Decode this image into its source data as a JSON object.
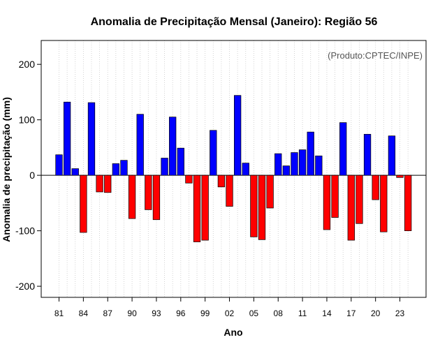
{
  "chart_data": {
    "type": "bar",
    "title": "Anomalia de Precipitação Mensal (Janeiro): Região 56",
    "xlabel": "Ano",
    "ylabel": "Anomalia de precipitação (mm)",
    "annotation": "(Produto:CPTEC/INPE)",
    "ylim": [
      -220,
      243
    ],
    "yticks": [
      -200,
      -100,
      0,
      100,
      200
    ],
    "ytick_labels": [
      "-200",
      "-100",
      "0",
      "100",
      "200"
    ],
    "xtick_labels": [
      "81",
      "84",
      "87",
      "90",
      "93",
      "96",
      "99",
      "02",
      "05",
      "08",
      "11",
      "14",
      "17",
      "20",
      "23"
    ],
    "xtick_every": 3,
    "grid": "vertical-dotted",
    "positive_color": "#0000ff",
    "negative_color": "#ff0000",
    "categories": [
      "1981",
      "1982",
      "1983",
      "1984",
      "1985",
      "1986",
      "1987",
      "1988",
      "1989",
      "1990",
      "1991",
      "1992",
      "1993",
      "1994",
      "1995",
      "1996",
      "1997",
      "1998",
      "1999",
      "2000",
      "2001",
      "2002",
      "2003",
      "2004",
      "2005",
      "2006",
      "2007",
      "2008",
      "2009",
      "2010",
      "2011",
      "2012",
      "2013",
      "2014",
      "2015",
      "2016",
      "2017",
      "2018",
      "2019",
      "2020",
      "2021",
      "2022",
      "2023",
      "2024"
    ],
    "values": [
      37,
      132,
      12,
      -103,
      131,
      -30,
      -31,
      21,
      27,
      -78,
      110,
      -62,
      -80,
      31,
      105,
      49,
      -14,
      -120,
      -117,
      81,
      -21,
      -56,
      144,
      22,
      -111,
      -116,
      -59,
      39,
      17,
      41,
      46,
      78,
      35,
      -98,
      -76,
      95,
      -117,
      -87,
      74,
      -44,
      -102,
      71,
      -4,
      -100
    ]
  }
}
